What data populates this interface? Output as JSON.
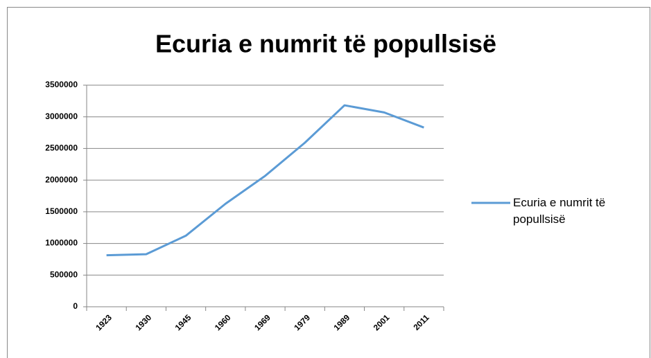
{
  "chart_data": {
    "type": "line",
    "title": "Ecuria e numrit të popullsisë",
    "categories": [
      "1923",
      "1930",
      "1945",
      "1960",
      "1969",
      "1979",
      "1989",
      "2001",
      "2011"
    ],
    "series": [
      {
        "name": "Ecuria e numrit të popullsisë",
        "color": "#5b9bd5",
        "values": [
          814000,
          830000,
          1122000,
          1627000,
          2068000,
          2591000,
          3182000,
          3069000,
          2831000
        ]
      }
    ],
    "ylim": [
      0,
      3500000
    ],
    "yticks": [
      0,
      500000,
      1000000,
      1500000,
      2000000,
      2500000,
      3000000,
      3500000
    ],
    "grid": true,
    "legend": "right"
  }
}
